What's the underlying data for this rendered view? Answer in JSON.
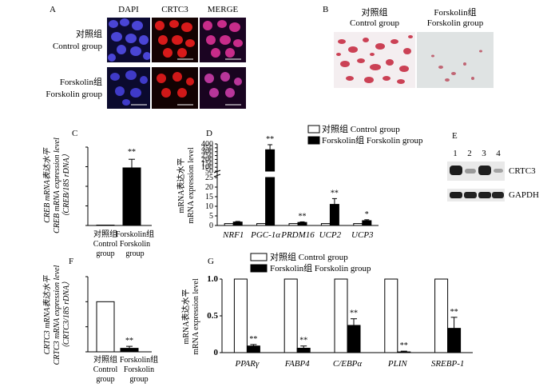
{
  "panelA": {
    "letter": "A",
    "cols": [
      "DAPI",
      "CRTC3",
      "MERGE"
    ],
    "rows": [
      {
        "cn": "对照组",
        "en": "Control group"
      },
      {
        "cn": "Forskolin组",
        "en": "Forskolin group"
      }
    ]
  },
  "panelB": {
    "letter": "B",
    "left": {
      "cn": "对照组",
      "en": "Control group"
    },
    "right": {
      "cn": "Forskolin组",
      "en": "Forskolin group"
    }
  },
  "legend": {
    "control": "对照组 Control group",
    "forskolin": "Forskolin组 Forskolin group"
  },
  "panelE": {
    "letter": "E",
    "lanes": [
      "1",
      "2",
      "3",
      "4"
    ],
    "bands": [
      "CRTC3",
      "GAPDH"
    ]
  },
  "chart_data": [
    {
      "panel": "C",
      "type": "bar",
      "categories": [
        "对照组 Control group",
        "Forskolin组 Forskolin group"
      ],
      "ylabel_cn": "CREB mRNA表达水平",
      "ylabel_en": "CREB mRNA expression level",
      "ylabel_sub": "（CREB/18S rDNA）",
      "series": [
        {
          "values": [
            1,
            147
          ],
          "errors": [
            0,
            22
          ]
        }
      ],
      "ylim": [
        0,
        200
      ],
      "yticks": [
        0,
        50,
        100,
        150,
        200
      ],
      "annotations": [
        "",
        "**"
      ]
    },
    {
      "panel": "D",
      "type": "bar",
      "categories": [
        "NRF1",
        "PGC-1α",
        "PRDM16",
        "UCP2",
        "UCP3"
      ],
      "ylabel_cn": "mRNA表达水平",
      "ylabel_en": "mRNA expression level",
      "yticks": [
        0,
        5,
        10,
        15,
        20,
        25,
        50,
        100,
        150,
        200,
        250,
        300,
        350,
        400
      ],
      "axis_break": [
        25,
        50
      ],
      "series": [
        {
          "name": "对照组 Control group",
          "values": [
            1,
            1,
            1,
            1,
            1
          ],
          "errors": [
            0,
            0,
            0,
            0,
            0
          ]
        },
        {
          "name": "Forskolin组 Forskolin group",
          "values": [
            1.8,
            325,
            1.6,
            11,
            2.5
          ],
          "errors": [
            0.3,
            65,
            0.3,
            3,
            0.5
          ]
        }
      ],
      "annotations": [
        "",
        "**",
        "**",
        "**",
        "*"
      ]
    },
    {
      "panel": "F",
      "type": "bar",
      "categories": [
        "对照组 Control group",
        "Forskolin组 Forskolin group"
      ],
      "ylabel_cn": "CRTC3 mRNA表达水平",
      "ylabel_en": "CRTC3 mRNA expression level",
      "ylabel_sub": "（CRTC3/18S rDNA）",
      "series": [
        {
          "values": [
            1.0,
            0.07
          ],
          "errors": [
            0,
            0.04
          ]
        }
      ],
      "ylim": [
        0,
        1.5
      ],
      "yticks": [
        0,
        0.5,
        1.0,
        1.5
      ],
      "annotations": [
        "",
        "**"
      ]
    },
    {
      "panel": "G",
      "type": "bar",
      "categories": [
        "PPARγ",
        "FABP4",
        "C/EBPα",
        "PLIN",
        "SREBP-1"
      ],
      "ylabel_cn": "mRNA表达水平",
      "ylabel_en": "mRNA expression level",
      "ylim": [
        0,
        1.0
      ],
      "yticks": [
        0,
        0.5,
        1.0
      ],
      "series": [
        {
          "name": "对照组 Control group",
          "values": [
            1.0,
            1.0,
            1.0,
            1.0,
            1.0
          ],
          "errors": [
            0,
            0,
            0,
            0,
            0
          ]
        },
        {
          "name": "Forskolin组 Forskolin group",
          "values": [
            0.09,
            0.06,
            0.37,
            0.01,
            0.33
          ],
          "errors": [
            0.02,
            0.03,
            0.09,
            0.01,
            0.15
          ]
        }
      ],
      "annotations": [
        "**",
        "**",
        "**",
        "**",
        "**"
      ]
    }
  ]
}
